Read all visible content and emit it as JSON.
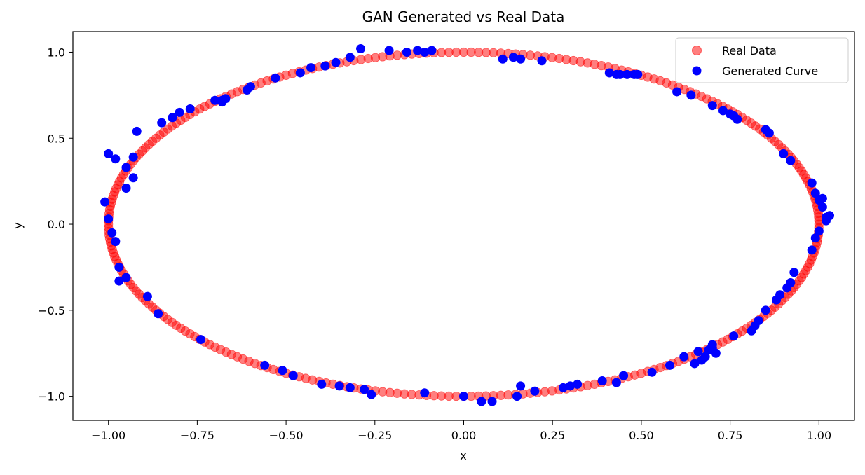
{
  "chart_data": {
    "type": "scatter",
    "title": "GAN Generated vs Real Data",
    "xlabel": "x",
    "ylabel": "y",
    "xlim": [
      -1.1,
      1.1
    ],
    "ylim": [
      -1.14,
      1.12
    ],
    "xticks": [
      -1.0,
      -0.75,
      -0.5,
      -0.25,
      0.0,
      0.25,
      0.5,
      0.75,
      1.0
    ],
    "xtick_labels": [
      "−1.00",
      "−0.75",
      "−0.50",
      "−0.25",
      "0.00",
      "0.25",
      "0.50",
      "0.75",
      "1.00"
    ],
    "yticks": [
      -1.0,
      -0.5,
      0.0,
      0.5,
      1.0
    ],
    "ytick_labels": [
      "−1.0",
      "−0.5",
      "0.0",
      "0.5",
      "1.0"
    ],
    "grid": false,
    "legend_position": "top-right",
    "series": [
      {
        "name": "Real Data",
        "color": "#ff0000",
        "opacity": 0.5,
        "marker": "circle",
        "description_shape": "unit circle, x = cos(t), y = sin(t), 300 evenly spaced samples",
        "n_points": 300
      },
      {
        "name": "Generated Curve",
        "color": "#0000ff",
        "opacity": 1.0,
        "marker": "circle",
        "points": [
          [
            -1.01,
            0.13
          ],
          [
            -1.0,
            0.41
          ],
          [
            -0.98,
            0.38
          ],
          [
            -1.0,
            0.03
          ],
          [
            -0.99,
            -0.05
          ],
          [
            -0.98,
            -0.1
          ],
          [
            -0.97,
            -0.25
          ],
          [
            -0.97,
            -0.33
          ],
          [
            -0.95,
            -0.31
          ],
          [
            -0.95,
            0.21
          ],
          [
            -0.95,
            0.33
          ],
          [
            -0.93,
            0.27
          ],
          [
            -0.93,
            0.39
          ],
          [
            -0.92,
            0.54
          ],
          [
            -0.89,
            -0.42
          ],
          [
            -0.86,
            -0.52
          ],
          [
            -0.85,
            0.59
          ],
          [
            -0.82,
            0.62
          ],
          [
            -0.8,
            0.65
          ],
          [
            -0.77,
            0.67
          ],
          [
            -0.74,
            -0.67
          ],
          [
            -0.7,
            0.72
          ],
          [
            -0.68,
            0.72
          ],
          [
            -0.68,
            0.71
          ],
          [
            -0.67,
            0.73
          ],
          [
            -0.61,
            0.78
          ],
          [
            -0.6,
            0.8
          ],
          [
            -0.56,
            -0.82
          ],
          [
            -0.53,
            0.85
          ],
          [
            -0.51,
            -0.85
          ],
          [
            -0.48,
            -0.88
          ],
          [
            -0.46,
            0.88
          ],
          [
            -0.43,
            0.91
          ],
          [
            -0.4,
            -0.93
          ],
          [
            -0.39,
            0.92
          ],
          [
            -0.36,
            0.94
          ],
          [
            -0.35,
            -0.94
          ],
          [
            -0.32,
            -0.95
          ],
          [
            -0.32,
            0.97
          ],
          [
            -0.29,
            1.02
          ],
          [
            -0.28,
            -0.96
          ],
          [
            -0.26,
            -0.99
          ],
          [
            -0.21,
            1.01
          ],
          [
            -0.16,
            1.0
          ],
          [
            -0.13,
            1.01
          ],
          [
            -0.11,
            -0.98
          ],
          [
            -0.11,
            1.0
          ],
          [
            -0.09,
            1.01
          ],
          [
            0.0,
            -1.0
          ],
          [
            0.05,
            -1.03
          ],
          [
            0.08,
            -1.03
          ],
          [
            0.11,
            0.96
          ],
          [
            0.14,
            0.97
          ],
          [
            0.15,
            -1.0
          ],
          [
            0.16,
            -0.94
          ],
          [
            0.16,
            0.96
          ],
          [
            0.2,
            -0.97
          ],
          [
            0.22,
            0.95
          ],
          [
            0.28,
            -0.95
          ],
          [
            0.3,
            -0.94
          ],
          [
            0.32,
            -0.93
          ],
          [
            0.39,
            -0.91
          ],
          [
            0.41,
            0.88
          ],
          [
            0.43,
            0.87
          ],
          [
            0.43,
            -0.92
          ],
          [
            0.44,
            0.87
          ],
          [
            0.45,
            -0.88
          ],
          [
            0.46,
            0.87
          ],
          [
            0.48,
            0.87
          ],
          [
            0.49,
            0.87
          ],
          [
            0.53,
            -0.86
          ],
          [
            0.58,
            -0.82
          ],
          [
            0.6,
            0.77
          ],
          [
            0.62,
            -0.77
          ],
          [
            0.64,
            0.75
          ],
          [
            0.65,
            -0.81
          ],
          [
            0.66,
            -0.74
          ],
          [
            0.67,
            -0.79
          ],
          [
            0.68,
            -0.77
          ],
          [
            0.69,
            -0.73
          ],
          [
            0.7,
            -0.7
          ],
          [
            0.7,
            0.69
          ],
          [
            0.7,
            -0.72
          ],
          [
            0.71,
            -0.75
          ],
          [
            0.73,
            0.66
          ],
          [
            0.75,
            0.64
          ],
          [
            0.76,
            0.63
          ],
          [
            0.76,
            -0.65
          ],
          [
            0.77,
            0.61
          ],
          [
            0.81,
            -0.62
          ],
          [
            0.82,
            -0.59
          ],
          [
            0.83,
            -0.56
          ],
          [
            0.85,
            0.55
          ],
          [
            0.85,
            -0.5
          ],
          [
            0.86,
            0.53
          ],
          [
            0.88,
            -0.44
          ],
          [
            0.89,
            -0.41
          ],
          [
            0.9,
            0.41
          ],
          [
            0.91,
            -0.37
          ],
          [
            0.92,
            -0.34
          ],
          [
            0.92,
            0.37
          ],
          [
            0.93,
            -0.28
          ],
          [
            0.98,
            -0.15
          ],
          [
            0.98,
            0.24
          ],
          [
            0.99,
            0.18
          ],
          [
            0.99,
            -0.08
          ],
          [
            1.0,
            0.14
          ],
          [
            1.0,
            -0.04
          ],
          [
            1.01,
            0.1
          ],
          [
            1.01,
            0.15
          ],
          [
            1.02,
            0.02
          ],
          [
            1.02,
            0.04
          ],
          [
            1.03,
            0.05
          ]
        ]
      }
    ]
  }
}
